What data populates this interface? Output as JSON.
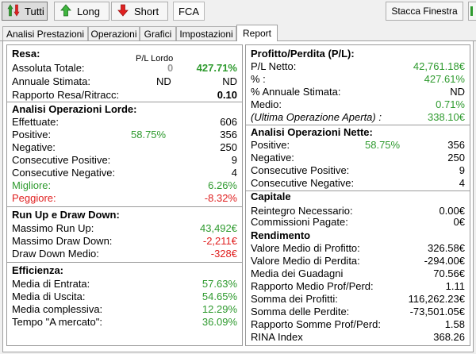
{
  "toolbar": {
    "tutti_label": "Tutti",
    "long_label": "Long",
    "short_label": "Short",
    "symbol": "FCA",
    "detach_label": "Stacca Finestra"
  },
  "tabs": [
    {
      "label": "Analisi Prestazioni"
    },
    {
      "label": "Operazioni"
    },
    {
      "label": "Grafici"
    },
    {
      "label": "Impostazioni"
    },
    {
      "label": "Report"
    }
  ],
  "left": {
    "resa": {
      "title": "Resa:",
      "col_header": "P/L Lordo",
      "rows": [
        {
          "label": "Assoluta Totale:",
          "mid": "0",
          "value": "427.71%"
        },
        {
          "label": "Annuale Stimata:",
          "mid": "ND",
          "value": "ND"
        },
        {
          "label": "Rapporto Resa/Ritracc:",
          "mid": "",
          "value": "0.10"
        }
      ]
    },
    "lorde": {
      "title": "Analisi Operazioni Lorde:",
      "rows": [
        {
          "label": "Effettuate:",
          "mid": "",
          "value": "606"
        },
        {
          "label": "Positive:",
          "mid": "58.75%",
          "value": "356"
        },
        {
          "label": "Negative:",
          "mid": "",
          "value": "250"
        },
        {
          "label": "Consecutive Positive:",
          "mid": "",
          "value": "9"
        },
        {
          "label": "Consecutive Negative:",
          "mid": "",
          "value": "4"
        },
        {
          "label": "Migliore:",
          "mid": "",
          "value": "6.26%"
        },
        {
          "label": "Peggiore:",
          "mid": "",
          "value": "-8.32%"
        }
      ]
    },
    "runup": {
      "title": "Run Up e Draw Down:",
      "rows": [
        {
          "label": "Massimo Run Up:",
          "value": "43,492€"
        },
        {
          "label": "Massimo Draw Down:",
          "value": "-2,211€"
        },
        {
          "label": "Draw Down Medio:",
          "value": "-328€"
        }
      ]
    },
    "efficienza": {
      "title": "Efficienza:",
      "rows": [
        {
          "label": "Media di Entrata:",
          "value": "57.63%"
        },
        {
          "label": "Media di Uscita:",
          "value": "54.65%"
        },
        {
          "label": "Media complessiva:",
          "value": "12.29%"
        },
        {
          "label": "Tempo \"A mercato\":",
          "value": "36.09%"
        }
      ]
    }
  },
  "right": {
    "pl": {
      "title": "Profitto/Perdita (P/L):",
      "rows": [
        {
          "label": "P/L Netto:",
          "value": "42,761.18€"
        },
        {
          "label": "% :",
          "value": "427.61%"
        },
        {
          "label": "% Annuale Stimata:",
          "value": "ND"
        },
        {
          "label": "Medio:",
          "value": "0.71%"
        },
        {
          "label": "(Ultima Operazione Aperta) :",
          "value": "338.10€"
        }
      ]
    },
    "nette": {
      "title": "Analisi Operazioni Nette:",
      "rows": [
        {
          "label": "Positive:",
          "mid": "58.75%",
          "value": "356"
        },
        {
          "label": "Negative:",
          "mid": "",
          "value": "250"
        },
        {
          "label": "Consecutive Positive:",
          "mid": "",
          "value": "9"
        },
        {
          "label": "Consecutive Negative:",
          "mid": "",
          "value": "4"
        }
      ]
    },
    "capitale": {
      "title": "Capitale",
      "rows": [
        {
          "label": "Reintegro Necessario:",
          "value": "0.00€"
        },
        {
          "label": "Commissioni Pagate:",
          "value": "0€"
        }
      ]
    },
    "rendimento": {
      "title": "Rendimento",
      "rows": [
        {
          "label": "Valore Medio di Profitto:",
          "value": "326.58€"
        },
        {
          "label": "Valore Medio di Perdita:",
          "value": "-294.00€"
        },
        {
          "label": "Media dei Guadagni",
          "value": "70.56€"
        },
        {
          "label": "Rapporto Medio Prof/Perd:",
          "value": "1.11"
        },
        {
          "label": "Somma dei Profitti:",
          "value": "116,262.23€"
        },
        {
          "label": "Somma delle Perdite:",
          "value": "-73,501.05€"
        },
        {
          "label": "Rapporto Somme Prof/Perd:",
          "value": "1.58"
        },
        {
          "label": "RINA Index",
          "value": "368.26"
        }
      ]
    }
  },
  "colors": {
    "positive": "#2e9a2e",
    "negative": "#e02020"
  }
}
